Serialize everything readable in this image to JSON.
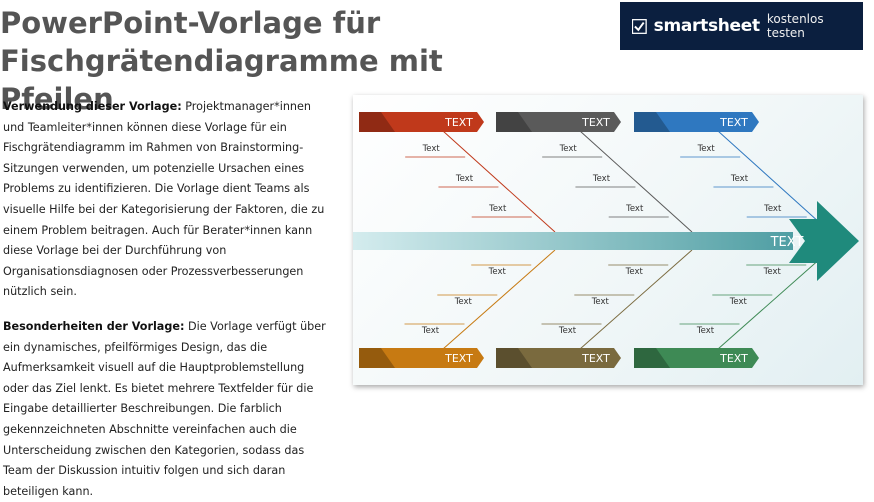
{
  "page": {
    "title_lines": [
      "PowerPoint-Vorlage für",
      "Fischgrätendiagramme mit",
      "Pfeilen"
    ]
  },
  "promo": {
    "brand": "smartsheet",
    "cta": "kostenlos testen",
    "background": "#0b1f3f"
  },
  "description": {
    "p1_label": "Verwendung dieser Vorlage:",
    "p1_text": " Projektmanager*innen und Teamleiter*innen können diese Vorlage für ein Fischgrätendiagramm im Rahmen von Brainstorming-Sitzungen verwenden, um potenzielle Ursachen eines Problems zu identifizieren. Die Vorlage dient Teams als visuelle Hilfe bei der Kategorisierung der Faktoren, die zu einem Problem beitragen. Auch für Berater*innen kann diese Vorlage bei der Durchführung von Organisationsdiagnosen oder Prozessverbesserungen nützlich sein.",
    "p2_label": "Besonderheiten der Vorlage:",
    "p2_text": " Die Vorlage verfügt über ein dynamisches, pfeilförmiges Design, das die Aufmerksamkeit visuell auf die Hauptproblemstellung oder das Ziel lenkt. Es bietet mehrere Textfelder für die Eingabe detaillierter Beschreibungen. Die farblich gekennzeichneten Abschnitte vereinfachen auch die Unterscheidung zwischen den Kategorien, sodass das Team der Diskussion intuitiv folgen und sich daran beteiligen kann."
  },
  "diagram": {
    "head_label": "TEXT",
    "top_categories": [
      {
        "label": "TEXT",
        "color": "#c0391b"
      },
      {
        "label": "TEXT",
        "color": "#5a5a5a"
      },
      {
        "label": "TEXT",
        "color": "#2f78c0"
      }
    ],
    "bottom_categories": [
      {
        "label": "TEXT",
        "color": "#c77a12"
      },
      {
        "label": "TEXT",
        "color": "#7a6a3e"
      },
      {
        "label": "TEXT",
        "color": "#3e8a55"
      }
    ],
    "cause_label": "Text",
    "spine_color": "#5aa6ac",
    "arrow_color": "#1f8a7c"
  }
}
